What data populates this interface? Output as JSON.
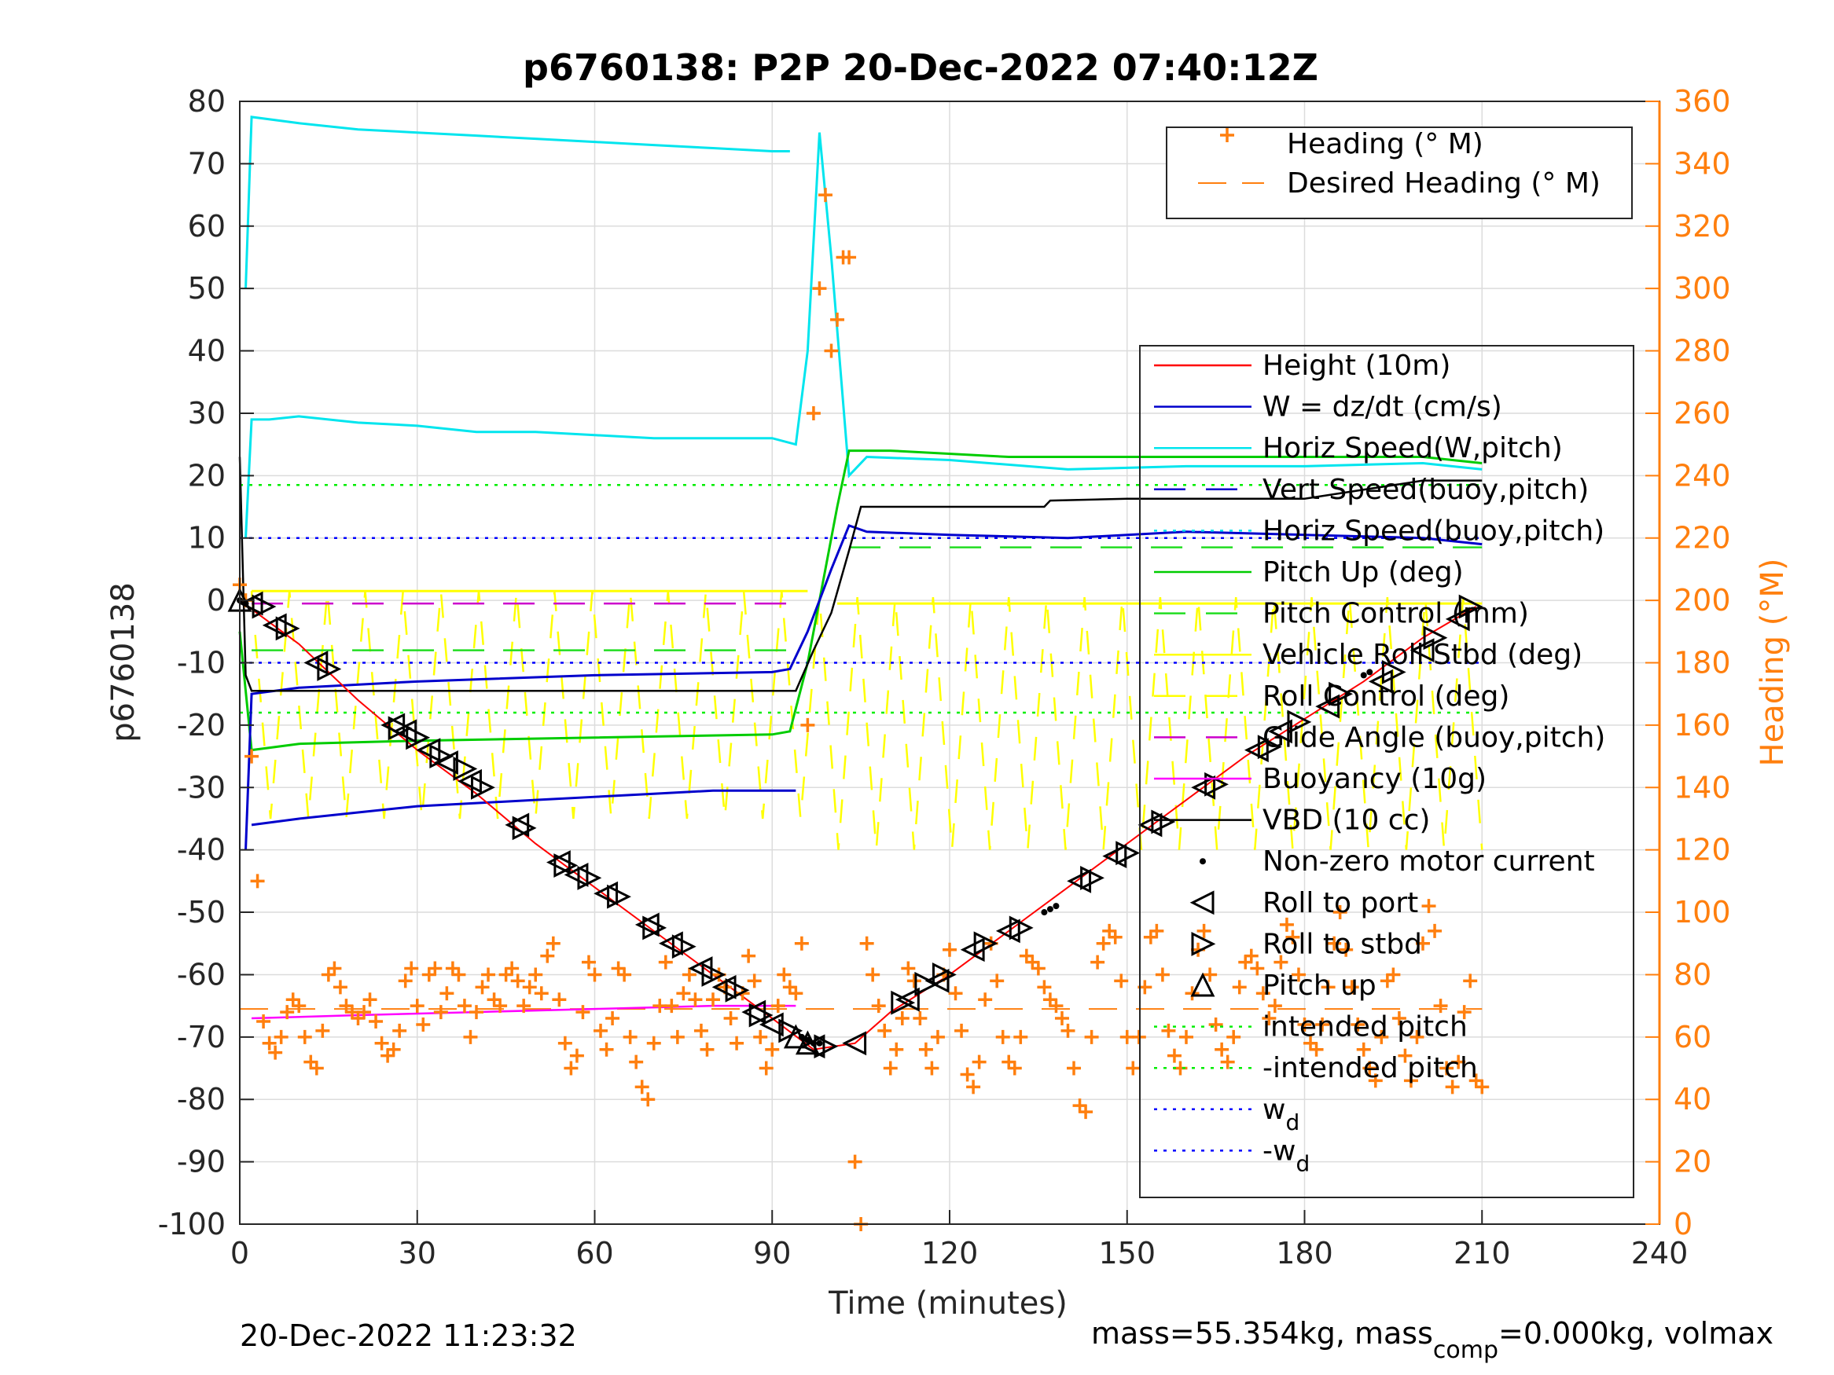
{
  "chart_data": {
    "type": "line",
    "title": "p6760138: P2P 20-Dec-2022 07:40:12Z",
    "xlabel": "Time (minutes)",
    "ylabel_left": "p6760138",
    "ylabel_right": "Heading (°M)",
    "xlim": [
      0,
      240
    ],
    "ylim_left": [
      -100,
      80
    ],
    "ylim_right": [
      0,
      360
    ],
    "x_ticks": [
      "0",
      "30",
      "60",
      "90",
      "120",
      "150",
      "180",
      "210",
      "240"
    ],
    "y_ticks_left": [
      "80",
      "70",
      "60",
      "50",
      "40",
      "30",
      "20",
      "10",
      "0",
      "-10",
      "-20",
      "-30",
      "-40",
      "-50",
      "-60",
      "-70",
      "-80",
      "-90",
      "-100"
    ],
    "y_ticks_right": [
      "360",
      "340",
      "320",
      "300",
      "280",
      "260",
      "240",
      "220",
      "200",
      "180",
      "160",
      "140",
      "120",
      "100",
      "80",
      "60",
      "40",
      "20",
      "0"
    ],
    "grid": true,
    "legend_heading": {
      "placement": "top-right",
      "items": [
        "Heading (° M)",
        "Desired Heading (° M)"
      ]
    },
    "legend_main": {
      "placement": "right",
      "items": [
        "Height (10m)",
        "W = dz/dt (cm/s)",
        "Horiz Speed(W,pitch)",
        "Vert Speed(buoy,pitch)",
        "Horiz Speed(buoy,pitch)",
        "Pitch Up (deg)",
        "Pitch Control (mm)",
        "Vehicle Roll Stbd (deg)",
        "Roll Control (deg)",
        "Glide Angle (buoy,pitch)",
        "Buoyancy (10g)",
        "VBD (10 cc)",
        "Non-zero motor current",
        "Roll to port",
        "Roll to stbd",
        "Pitch up",
        "intended pitch",
        "-intended pitch",
        "w",
        "-w"
      ],
      "subscript": "d"
    },
    "colors": {
      "height": "#ff0000",
      "w": "#0000cc",
      "horiz_speed_w": "#00e5ee",
      "pitch": "#00cc00",
      "pitch_control": "#22dd22",
      "roll": "#ffff00",
      "glide": "#cc00cc",
      "buoyancy": "#ff00ff",
      "vbd": "#000000",
      "heading": "#ff7f0e",
      "intended": "#00ee00",
      "wd": "#0000ff"
    },
    "series": [
      {
        "name": "Height (10m)",
        "x": [
          0,
          5,
          10,
          20,
          30,
          40,
          50,
          60,
          70,
          80,
          90,
          97,
          104,
          110,
          120,
          130,
          140,
          150,
          160,
          170,
          180,
          190,
          200,
          209
        ],
        "y": [
          0,
          -3.5,
          -7,
          -16,
          -24,
          -31,
          -39,
          -46,
          -53,
          -60,
          -67,
          -72,
          -71,
          -66,
          -60,
          -53,
          -46,
          -39,
          -32,
          -25,
          -19,
          -13,
          -6,
          -1
        ]
      },
      {
        "name": "VBD (10 cc)",
        "x": [
          0,
          1,
          2,
          10,
          30,
          60,
          90,
          94,
          97,
          100,
          103,
          105,
          120,
          136,
          137,
          150,
          180,
          200,
          210
        ],
        "y": [
          23,
          -12,
          -14.5,
          -14.5,
          -14.5,
          -14.5,
          -14.5,
          -14.5,
          -8,
          -2,
          8,
          15,
          15,
          15,
          16,
          16.3,
          16.3,
          19.2,
          19.2
        ]
      },
      {
        "name": "Pitch Up (deg)",
        "x": [
          0,
          2,
          10,
          30,
          60,
          90,
          93,
          96,
          99,
          101,
          103,
          110,
          130,
          150,
          170,
          190,
          200,
          210
        ],
        "y": [
          -5,
          -24,
          -23,
          -22.5,
          -22,
          -21.5,
          -21,
          -10,
          5,
          15,
          24,
          24,
          23,
          23,
          23,
          23,
          23,
          22
        ]
      },
      {
        "name": "Horiz Speed(W,pitch)",
        "x": [
          1,
          2,
          5,
          10,
          20,
          30,
          40,
          50,
          60,
          70,
          80,
          90,
          94,
          96,
          98,
          100,
          103,
          106,
          120,
          140,
          160,
          180,
          200,
          210
        ],
        "y": [
          10,
          29,
          29,
          29.5,
          28.5,
          28,
          27,
          27,
          26.5,
          26,
          26,
          26,
          25,
          40,
          75,
          55,
          20,
          23,
          22.5,
          21,
          21.5,
          21.5,
          22,
          21
        ]
      },
      {
        "name": "Horiz Speed(W,pitch) top",
        "x": [
          1,
          2,
          10,
          20,
          30,
          40,
          50,
          60,
          70,
          80,
          90,
          93
        ],
        "y": [
          50,
          77.5,
          76.5,
          75.5,
          75,
          74.5,
          74,
          73.5,
          73,
          72.5,
          72,
          72
        ]
      },
      {
        "name": "W = dz/dt (cm/s)",
        "x": [
          1,
          2,
          10,
          30,
          60,
          90,
          93,
          96,
          100,
          103,
          106,
          120,
          140,
          160,
          180,
          200,
          210
        ],
        "y": [
          -40,
          -15,
          -14,
          -13,
          -12,
          -11.5,
          -11,
          -5,
          5,
          12,
          11,
          10.5,
          10,
          11,
          10.5,
          10,
          9
        ]
      },
      {
        "name": "Vert Speed(buoy,pitch)",
        "x": [
          2,
          10,
          20,
          30,
          40,
          50,
          60,
          70,
          80,
          90,
          94
        ],
        "y": [
          -36,
          -35,
          -34,
          -33,
          -32.5,
          -32,
          -31.5,
          -31,
          -30.5,
          -30.5,
          -30.5
        ]
      },
      {
        "name": "Buoyancy (10g)",
        "x": [
          2,
          20,
          40,
          60,
          80,
          94
        ],
        "y": [
          -67,
          -66.5,
          -66,
          -65.5,
          -65,
          -65
        ]
      },
      {
        "name": "Glide Angle (buoy,pitch)",
        "x": [
          2,
          94
        ],
        "y": [
          -0.5,
          -0.5
        ]
      },
      {
        "name": "Pitch Control (mm) lower",
        "x": [
          2,
          94
        ],
        "y": [
          -8,
          -8
        ]
      },
      {
        "name": "Pitch Control (mm) upper",
        "x": [
          103,
          210
        ],
        "y": [
          8.5,
          8.5
        ]
      },
      {
        "name": "intended pitch",
        "x": [
          0,
          210
        ],
        "y": [
          18.5,
          18.5
        ]
      },
      {
        "name": "-intended pitch",
        "x": [
          0,
          210
        ],
        "y": [
          -18,
          -18
        ]
      },
      {
        "name": "w",
        "x": [
          0,
          210
        ],
        "y": [
          10,
          10
        ]
      },
      {
        "name": "-w",
        "x": [
          0,
          210
        ],
        "y": [
          -10,
          -10
        ]
      },
      {
        "name": "Desired Heading (° M)",
        "x": [
          0,
          210
        ],
        "y_right": [
          69,
          69
        ]
      }
    ],
    "heading_points": {
      "axis": "right",
      "x": [
        0,
        1,
        2,
        3,
        4,
        5,
        6,
        7,
        8,
        9,
        10,
        11,
        12,
        13,
        14,
        15,
        16,
        17,
        18,
        19,
        20,
        21,
        22,
        23,
        24,
        25,
        26,
        27,
        28,
        29,
        30,
        31,
        32,
        33,
        34,
        35,
        36,
        37,
        38,
        39,
        40,
        41,
        42,
        43,
        44,
        45,
        46,
        47,
        48,
        49,
        50,
        51,
        52,
        53,
        54,
        55,
        56,
        57,
        58,
        59,
        60,
        61,
        62,
        63,
        64,
        65,
        66,
        67,
        68,
        69,
        70,
        71,
        72,
        73,
        74,
        75,
        76,
        77,
        78,
        79,
        80,
        81,
        82,
        83,
        84,
        85,
        86,
        87,
        88,
        89,
        90,
        91,
        92,
        93,
        94,
        95,
        96,
        97,
        98,
        99,
        100,
        101,
        102,
        103,
        104,
        105,
        106,
        107,
        108,
        109,
        110,
        111,
        112,
        113,
        114,
        115,
        116,
        117,
        118,
        119,
        120,
        121,
        122,
        123,
        124,
        125,
        126,
        127,
        128,
        129,
        130,
        131,
        132,
        133,
        134,
        135,
        136,
        137,
        138,
        139,
        140,
        141,
        142,
        143,
        144,
        145,
        146,
        147,
        148,
        149,
        150,
        151,
        152,
        153,
        154,
        155,
        156,
        157,
        158,
        159,
        160,
        161,
        162,
        163,
        164,
        165,
        166,
        167,
        168,
        169,
        170,
        171,
        172,
        173,
        174,
        175,
        176,
        177,
        178,
        179,
        180,
        181,
        182,
        183,
        184,
        185,
        186,
        187,
        188,
        189,
        190,
        191,
        192,
        193,
        194,
        195,
        196,
        197,
        198,
        199,
        200,
        201,
        202,
        203,
        204,
        205,
        206,
        207,
        208,
        209,
        210
      ],
      "y": [
        205,
        200,
        150,
        110,
        65,
        58,
        55,
        60,
        68,
        72,
        70,
        60,
        52,
        50,
        62,
        80,
        82,
        76,
        70,
        68,
        66,
        68,
        72,
        65,
        58,
        54,
        56,
        62,
        78,
        82,
        70,
        64,
        80,
        82,
        68,
        74,
        82,
        80,
        70,
        60,
        68,
        76,
        80,
        72,
        70,
        80,
        82,
        78,
        70,
        76,
        80,
        74,
        86,
        90,
        72,
        58,
        50,
        54,
        68,
        84,
        80,
        62,
        56,
        66,
        82,
        80,
        60,
        52,
        44,
        40,
        58,
        70,
        84,
        70,
        60,
        74,
        80,
        72,
        62,
        56,
        72,
        80,
        76,
        66,
        58,
        74,
        86,
        78,
        60,
        50,
        56,
        70,
        80,
        76,
        74,
        90,
        160,
        260,
        300,
        330,
        280,
        290,
        310,
        310,
        20,
        0,
        90,
        80,
        70,
        62,
        50,
        56,
        66,
        82,
        78,
        66,
        56,
        50,
        60,
        80,
        88,
        74,
        62,
        48,
        44,
        52,
        72,
        90,
        78,
        60,
        52,
        50,
        60,
        86,
        84,
        82,
        76,
        72,
        70,
        66,
        62,
        50,
        38,
        36,
        60,
        84,
        90,
        94,
        92,
        78,
        60,
        50,
        60,
        76,
        92,
        94,
        80,
        62,
        54,
        50,
        60,
        74,
        88,
        94,
        80,
        64,
        56,
        52,
        60,
        76,
        84,
        86,
        82,
        74,
        66,
        70,
        84,
        96,
        92,
        80,
        64,
        58,
        56,
        64,
        76,
        90,
        100,
        88,
        76,
        64,
        56,
        50,
        46,
        60,
        78,
        80,
        66,
        54,
        46,
        60,
        90,
        102,
        94,
        70,
        50,
        44,
        52,
        68,
        78,
        46,
        44
      ]
    },
    "markers": {
      "roll_to_port": {
        "x": [
          2,
          6,
          13,
          26,
          28,
          32,
          35,
          39,
          47,
          54,
          57,
          62,
          69,
          73,
          78,
          82,
          87,
          90,
          97,
          104,
          113,
          118,
          124,
          130,
          142,
          148,
          154,
          163,
          172,
          176,
          184,
          193,
          200,
          206
        ],
        "y": [
          -0.5,
          -4,
          -10,
          -20,
          -21,
          -24,
          -26,
          -29,
          -36,
          -42,
          -44,
          -47,
          -52,
          -55,
          -59,
          -62,
          -66,
          -68,
          -71.5,
          -71,
          -64,
          -61,
          -56,
          -53,
          -45,
          -41,
          -36,
          -30,
          -24,
          -21,
          -17,
          -13,
          -8,
          -3
        ]
      },
      "roll_to_stbd": {
        "x": [
          4,
          8,
          15,
          27,
          30,
          34,
          38,
          41,
          48,
          55,
          59,
          64,
          70,
          75,
          80,
          84,
          88,
          93,
          99,
          112,
          116,
          119,
          126,
          132,
          144,
          150,
          156,
          165,
          174,
          179,
          186,
          195,
          202,
          208
        ],
        "y": [
          -1,
          -4.5,
          -11,
          -20.5,
          -22,
          -25,
          -27,
          -30,
          -36.5,
          -42.5,
          -44.5,
          -47.5,
          -52.5,
          -55.5,
          -60,
          -62.5,
          -66.5,
          -69,
          -71.5,
          -64.5,
          -61.5,
          -60,
          -55,
          -52.5,
          -44.5,
          -40.5,
          -35.5,
          -29.5,
          -23.5,
          -19.5,
          -15,
          -11.5,
          -6,
          -1
        ]
      },
      "pitch_up": {
        "x": [
          0,
          94,
          96
        ],
        "y": [
          0,
          -70,
          -71
        ]
      },
      "motor_current": {
        "x": [
          0,
          1,
          95,
          96,
          97,
          98,
          136,
          137,
          138,
          190,
          191
        ],
        "y": [
          0,
          -0.5,
          -70,
          -70.5,
          -71,
          -71,
          -50,
          -49.5,
          -49,
          -12,
          -11.5
        ]
      }
    },
    "footer": {
      "timestamp": "20-Dec-2022 11:23:32",
      "mass_prefix": "mass=55.354kg, mass",
      "mass_sub": "comp",
      "mass_suffix": "=0.000kg, volmax"
    }
  }
}
